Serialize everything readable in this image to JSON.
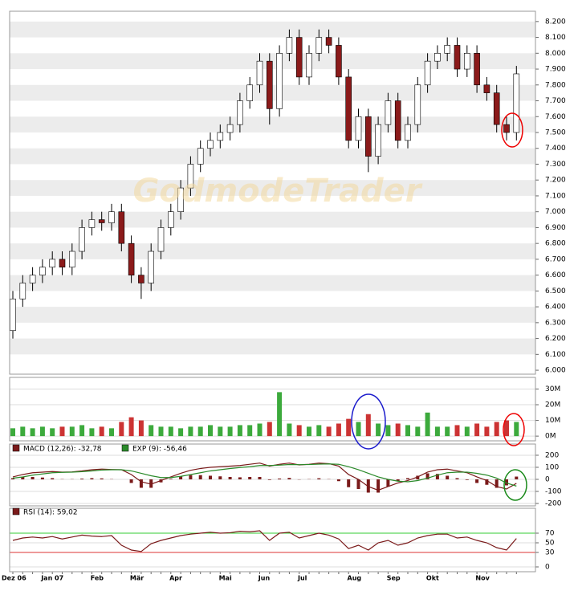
{
  "chart_data": [
    {
      "type": "candlestick",
      "watermark": "GodmodeTrader",
      "open": [
        6250,
        6450,
        6550,
        6600,
        6650,
        6700,
        6650,
        6750,
        6900,
        6950,
        6930,
        7000,
        6800,
        6600,
        6550,
        6750,
        6900,
        7000,
        7150,
        7300,
        7400,
        7450,
        7500,
        7550,
        7700,
        7800,
        7950,
        7650,
        8000,
        8100,
        7850,
        8000,
        8100,
        8050,
        7850,
        7450,
        7600,
        7350,
        7550,
        7700,
        7450,
        7550,
        7800,
        7950,
        8000,
        8050,
        7900,
        8000,
        7800,
        7750,
        7550,
        7500
      ],
      "high": [
        6500,
        6600,
        6650,
        6700,
        6750,
        6750,
        6800,
        6950,
        7000,
        7000,
        7050,
        7050,
        6850,
        6650,
        6800,
        6950,
        7050,
        7200,
        7350,
        7450,
        7500,
        7550,
        7600,
        7750,
        7850,
        8000,
        8000,
        8050,
        8150,
        8150,
        8050,
        8150,
        8150,
        8100,
        7900,
        7650,
        7650,
        7600,
        7750,
        7750,
        7600,
        7850,
        8000,
        8050,
        8100,
        8100,
        8050,
        8050,
        7850,
        7800,
        7600,
        7920
      ],
      "low": [
        6200,
        6400,
        6500,
        6550,
        6600,
        6600,
        6600,
        6700,
        6850,
        6880,
        6880,
        6750,
        6550,
        6450,
        6500,
        6700,
        6850,
        6950,
        7100,
        7250,
        7350,
        7400,
        7450,
        7500,
        7650,
        7750,
        7550,
        7600,
        7950,
        7800,
        7800,
        7950,
        8000,
        7800,
        7400,
        7400,
        7250,
        7300,
        7500,
        7400,
        7400,
        7500,
        7750,
        7900,
        7950,
        7850,
        7850,
        7750,
        7700,
        7500,
        7450,
        7450
      ],
      "close": [
        6450,
        6550,
        6600,
        6650,
        6700,
        6650,
        6750,
        6900,
        6950,
        6930,
        7000,
        6800,
        6600,
        6550,
        6750,
        6900,
        7000,
        7150,
        7300,
        7400,
        7450,
        7500,
        7550,
        7700,
        7800,
        7950,
        7650,
        8000,
        8100,
        7850,
        8000,
        8100,
        8050,
        7850,
        7450,
        7600,
        7350,
        7550,
        7700,
        7450,
        7550,
        7800,
        7950,
        8000,
        8050,
        7900,
        8000,
        7800,
        7750,
        7550,
        7500,
        7870
      ],
      "up_color": "#ffffff",
      "down_color": "#8b1a1a",
      "ylim": [
        5975,
        8265
      ],
      "stripes": true,
      "yticks": [
        {
          "value": 8200,
          "label": "8.200"
        },
        {
          "value": 8100,
          "label": "8.100"
        },
        {
          "value": 8000,
          "label": "8.000"
        },
        {
          "value": 7900,
          "label": "7.900"
        },
        {
          "value": 7800,
          "label": "7.800"
        },
        {
          "value": 7700,
          "label": "7.700"
        },
        {
          "value": 7600,
          "label": "7.600"
        },
        {
          "value": 7500,
          "label": "7.500"
        },
        {
          "value": 7400,
          "label": "7.400"
        },
        {
          "value": 7300,
          "label": "7.300"
        },
        {
          "value": 7200,
          "label": "7.200"
        },
        {
          "value": 7100,
          "label": "7.100"
        },
        {
          "value": 7000,
          "label": "7.000"
        },
        {
          "value": 6900,
          "label": "6.900"
        },
        {
          "value": 6800,
          "label": "6.800"
        },
        {
          "value": 6700,
          "label": "6.700"
        },
        {
          "value": 6600,
          "label": "6.600"
        },
        {
          "value": 6500,
          "label": "6.500"
        },
        {
          "value": 6400,
          "label": "6.400"
        },
        {
          "value": 6300,
          "label": "6.300"
        },
        {
          "value": 6200,
          "label": "6.200"
        },
        {
          "value": 6100,
          "label": "6.100"
        },
        {
          "value": 6000,
          "label": "6.000"
        }
      ]
    },
    {
      "type": "bar",
      "values": [
        5,
        6,
        5,
        6,
        5,
        6,
        6,
        7,
        5,
        6,
        5,
        9,
        12,
        10,
        7,
        6,
        6,
        5,
        6,
        6,
        7,
        6,
        6,
        7,
        7,
        8,
        9,
        28,
        8,
        7,
        6,
        7,
        6,
        8,
        11,
        9,
        14,
        8,
        7,
        8,
        7,
        6,
        15,
        6,
        6,
        7,
        6,
        8,
        6,
        9,
        10,
        9
      ],
      "color": "#3caa3c",
      "down_color": "#cc3333",
      "ylim": [
        -3,
        37.4
      ],
      "yticks": [
        {
          "value": 30,
          "label": "30M"
        },
        {
          "value": 20,
          "label": "20M"
        },
        {
          "value": 10,
          "label": "10M"
        },
        {
          "value": 0,
          "label": "0M"
        }
      ]
    },
    {
      "type": "macd",
      "series": [
        {
          "name": "MACD (12,26): -32,78",
          "color": "#7a1a1a",
          "values": [
            20,
            40,
            55,
            60,
            65,
            60,
            62,
            70,
            80,
            85,
            82,
            80,
            40,
            -20,
            -40,
            -10,
            20,
            50,
            75,
            90,
            100,
            105,
            110,
            115,
            125,
            135,
            110,
            125,
            135,
            120,
            125,
            135,
            130,
            110,
            40,
            0,
            -60,
            -90,
            -60,
            -30,
            -10,
            20,
            60,
            80,
            85,
            70,
            55,
            20,
            -10,
            -60,
            -80,
            -33
          ]
        },
        {
          "name": "EXP (9): -56,46",
          "color": "#2a8a2a",
          "values": [
            10,
            20,
            35,
            45,
            55,
            58,
            60,
            64,
            70,
            77,
            80,
            80,
            70,
            50,
            30,
            15,
            15,
            25,
            40,
            55,
            70,
            80,
            90,
            98,
            105,
            115,
            115,
            118,
            123,
            122,
            123,
            126,
            128,
            125,
            105,
            80,
            50,
            20,
            0,
            -15,
            -20,
            -10,
            10,
            35,
            55,
            60,
            60,
            50,
            35,
            10,
            -30,
            -56
          ]
        }
      ],
      "histogram": [
        10,
        20,
        20,
        15,
        10,
        2,
        2,
        6,
        10,
        8,
        2,
        0,
        -30,
        -70,
        -70,
        -25,
        5,
        25,
        35,
        35,
        30,
        25,
        20,
        17,
        20,
        20,
        -5,
        7,
        12,
        -2,
        2,
        9,
        2,
        -15,
        -65,
        -80,
        -110,
        -110,
        -60,
        -15,
        10,
        30,
        50,
        45,
        30,
        10,
        -5,
        -30,
        -45,
        -70,
        -50,
        23
      ],
      "histogram_color": "#7a1a1a",
      "ylim": [
        -220,
        293
      ],
      "yticks": [
        200,
        100,
        0,
        -100,
        -200
      ]
    },
    {
      "type": "line",
      "series": [
        {
          "name": "RSI (14): 59,02",
          "color": "#7a1a1a",
          "values": [
            55,
            60,
            62,
            60,
            63,
            58,
            62,
            66,
            64,
            63,
            65,
            45,
            35,
            32,
            48,
            55,
            60,
            65,
            68,
            70,
            72,
            70,
            71,
            74,
            73,
            75,
            55,
            70,
            72,
            60,
            65,
            70,
            66,
            58,
            38,
            45,
            35,
            50,
            55,
            45,
            50,
            60,
            65,
            68,
            68,
            60,
            62,
            55,
            50,
            40,
            35,
            59
          ]
        }
      ],
      "ref_lines": [
        {
          "value": 70,
          "color": "#33cc33"
        },
        {
          "value": 30,
          "color": "#dd3333"
        }
      ],
      "ylim": [
        -10,
        121.7
      ],
      "yticks": [
        70,
        50,
        30,
        0
      ],
      "categories": [
        "Dez 06",
        null,
        null,
        null,
        "Jan 07",
        null,
        null,
        null,
        null,
        "Feb",
        null,
        null,
        null,
        "Mär",
        null,
        null,
        null,
        "Apr",
        null,
        null,
        null,
        null,
        "Mai",
        null,
        null,
        null,
        "Jun",
        null,
        null,
        null,
        "Jul",
        null,
        null,
        null,
        null,
        "Aug",
        null,
        null,
        null,
        "Sep",
        null,
        null,
        null,
        "Okt",
        null,
        null,
        null,
        null,
        "Nov",
        null,
        null,
        null
      ]
    }
  ]
}
